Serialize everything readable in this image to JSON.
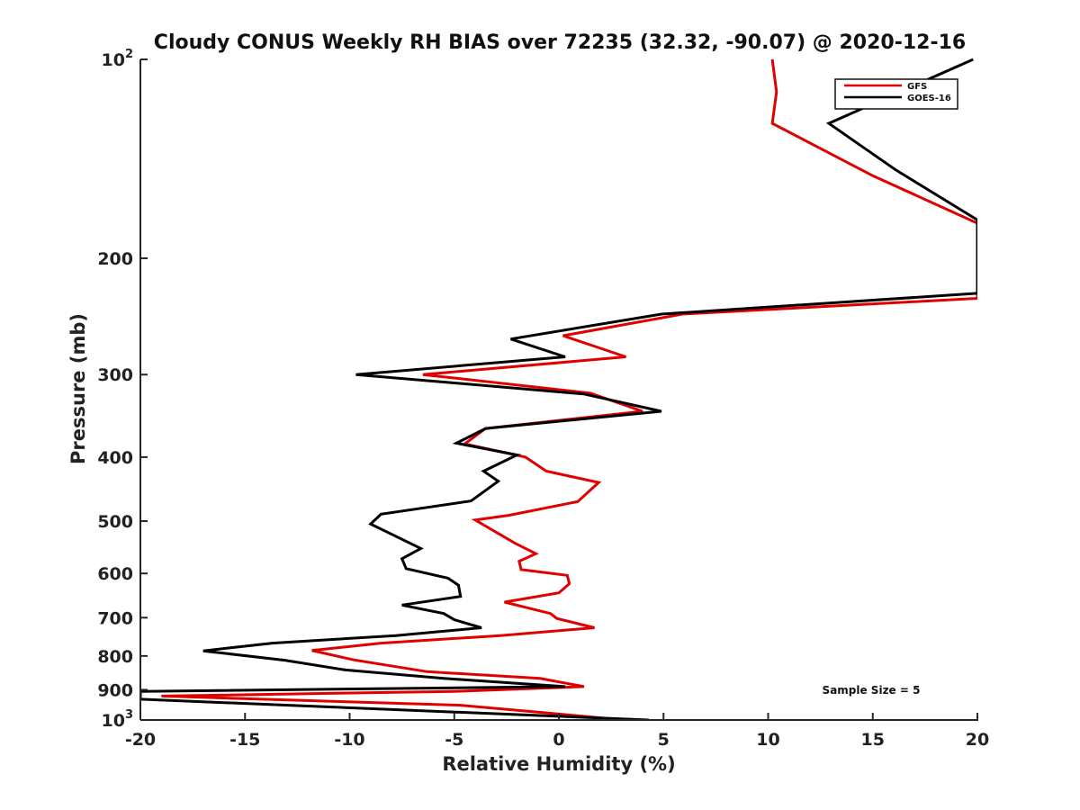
{
  "chart_data": {
    "type": "line",
    "title": "Cloudy CONUS Weekly RH BIAS over 72235 (32.32, -90.07) @ 2020-12-16",
    "xlabel": "Relative Humidity (%)",
    "ylabel": "Pressure (mb)",
    "xlim": [
      -20,
      20
    ],
    "ylim": [
      100,
      1000
    ],
    "yscale": "log",
    "yreverse": true,
    "x_ticks": [
      -20,
      -15,
      -10,
      -5,
      0,
      5,
      10,
      15,
      20
    ],
    "x_tick_labels": [
      "-20",
      "-15",
      "-10",
      "-5",
      "0",
      "5",
      "10",
      "15",
      "20"
    ],
    "y_ticks": [
      100,
      200,
      300,
      400,
      500,
      600,
      700,
      800,
      900,
      1000
    ],
    "y_tick_labels": [
      {
        "base": "10",
        "exp": "2"
      },
      {
        "base": "200"
      },
      {
        "base": "300"
      },
      {
        "base": "400"
      },
      {
        "base": "500"
      },
      {
        "base": "600"
      },
      {
        "base": "700"
      },
      {
        "base": "800"
      },
      {
        "base": "900"
      },
      {
        "base": "10",
        "exp": "3"
      }
    ],
    "annotation": "Sample Size = 5",
    "legend_position": "top-right",
    "series": [
      {
        "name": "GFS",
        "color": "#e00000",
        "points": [
          [
            10.2,
            100
          ],
          [
            10.4,
            112
          ],
          [
            10.2,
            125
          ],
          [
            15.0,
            150
          ],
          [
            20.0,
            177
          ],
          [
            20.0,
            230
          ],
          [
            5.9,
            243
          ],
          [
            0.2,
            262
          ],
          [
            3.2,
            282
          ],
          [
            -6.5,
            300
          ],
          [
            1.5,
            320
          ],
          [
            4.0,
            341
          ],
          [
            -3.5,
            362
          ],
          [
            -4.5,
            382
          ],
          [
            -1.6,
            400
          ],
          [
            -0.6,
            420
          ],
          [
            1.9,
            437
          ],
          [
            0.9,
            467
          ],
          [
            -2.4,
            490
          ],
          [
            -4.0,
            498
          ],
          [
            -2.1,
            540
          ],
          [
            -1.1,
            560
          ],
          [
            -1.9,
            575
          ],
          [
            -1.8,
            592
          ],
          [
            0.4,
            604
          ],
          [
            0.5,
            622
          ],
          [
            0.0,
            642
          ],
          [
            -2.6,
            663
          ],
          [
            -0.4,
            690
          ],
          [
            -0.1,
            702
          ],
          [
            1.7,
            725
          ],
          [
            -2.8,
            745
          ],
          [
            -8.5,
            765
          ],
          [
            -11.8,
            785
          ],
          [
            -9.8,
            811
          ],
          [
            -6.3,
            845
          ],
          [
            -0.9,
            865
          ],
          [
            1.2,
            890
          ],
          [
            -5.0,
            905
          ],
          [
            -19.0,
            920
          ],
          [
            -4.7,
            950
          ],
          [
            -0.7,
            975
          ],
          [
            3.1,
            1000
          ]
        ]
      },
      {
        "name": "GOES-16",
        "color": "#000000",
        "points": [
          [
            19.8,
            100
          ],
          [
            12.9,
            125
          ],
          [
            16.1,
            147
          ],
          [
            20.0,
            175
          ],
          [
            20.0,
            226
          ],
          [
            4.9,
            243
          ],
          [
            -2.3,
            265
          ],
          [
            0.3,
            282
          ],
          [
            -9.7,
            300
          ],
          [
            1.2,
            321
          ],
          [
            4.9,
            341
          ],
          [
            -3.5,
            362
          ],
          [
            -4.9,
            381
          ],
          [
            -2.0,
            397
          ],
          [
            -3.6,
            420
          ],
          [
            -2.9,
            435
          ],
          [
            -4.2,
            466
          ],
          [
            -8.5,
            488
          ],
          [
            -9.0,
            505
          ],
          [
            -6.6,
            550
          ],
          [
            -7.5,
            570
          ],
          [
            -7.3,
            590
          ],
          [
            -5.3,
            610
          ],
          [
            -4.8,
            625
          ],
          [
            -4.7,
            650
          ],
          [
            -7.5,
            670
          ],
          [
            -5.5,
            690
          ],
          [
            -5.0,
            705
          ],
          [
            -3.7,
            725
          ],
          [
            -7.8,
            745
          ],
          [
            -13.7,
            765
          ],
          [
            -17.0,
            786
          ],
          [
            -13.1,
            812
          ],
          [
            -10.2,
            840
          ],
          [
            -5.5,
            865
          ],
          [
            0.3,
            890
          ],
          [
            -20.0,
            905
          ],
          [
            -20.0,
            930
          ],
          [
            4.3,
            1000
          ]
        ]
      }
    ]
  }
}
